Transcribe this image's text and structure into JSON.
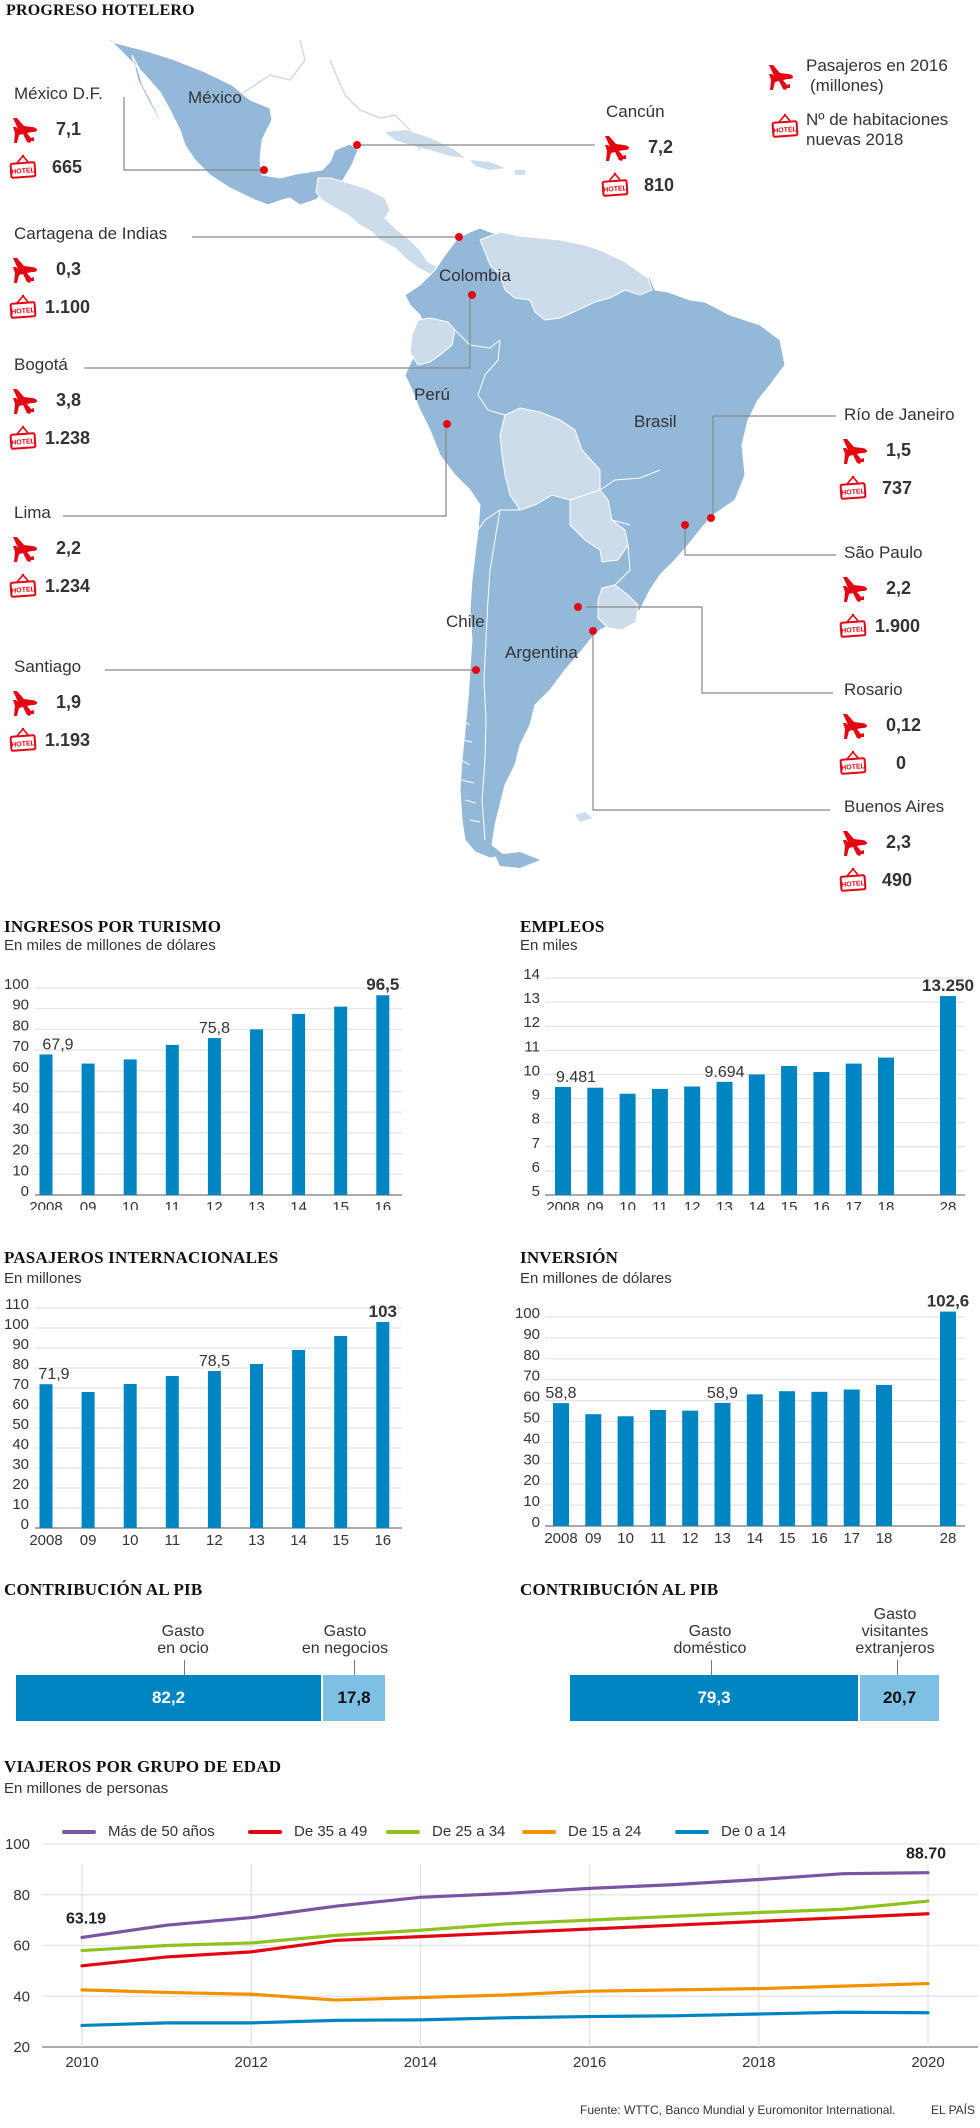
{
  "map": {
    "title": "PROGRESO HOTELERO",
    "legend": {
      "passengers_label": "Pasajeros en 2016 (millones)",
      "passengers_line1": "Pasajeros en 2016",
      "passengers_line2": "(millones)",
      "rooms_line1": "Nº de habitaciones",
      "rooms_line2": "nuevas 2018",
      "icons": {
        "passengers": "airplane-icon",
        "rooms": "hotel-sign-icon"
      }
    },
    "countries": [
      "México",
      "Colombia",
      "Perú",
      "Brasil",
      "Chile",
      "Argentina"
    ],
    "cities": [
      {
        "name": "México D.F.",
        "passengers": "7,1",
        "rooms": "665"
      },
      {
        "name": "Cancún",
        "passengers": "7,2",
        "rooms": "810"
      },
      {
        "name": "Cartagena de Indias",
        "passengers": "0,3",
        "rooms": "1.100"
      },
      {
        "name": "Bogotá",
        "passengers": "3,8",
        "rooms": "1.238"
      },
      {
        "name": "Lima",
        "passengers": "2,2",
        "rooms": "1.234"
      },
      {
        "name": "Santiago",
        "passengers": "1,9",
        "rooms": "1.193"
      },
      {
        "name": "Río de Janeiro",
        "passengers": "1,5",
        "rooms": "737"
      },
      {
        "name": "São Paulo",
        "passengers": "2,2",
        "rooms": "1.900"
      },
      {
        "name": "Rosario",
        "passengers": "0,12",
        "rooms": "0"
      },
      {
        "name": "Buenos Aires",
        "passengers": "2,3",
        "rooms": "490"
      }
    ],
    "colors": {
      "highlight": "#93b8d8",
      "other": "#cddcea",
      "marker": "#e30613"
    }
  },
  "chart_data": [
    {
      "id": "ingresos",
      "type": "bar",
      "title": "INGRESOS POR TURISMO",
      "subtitle": "En miles de millones de dólares",
      "categories": [
        "2008",
        "09",
        "10",
        "11",
        "12",
        "13",
        "14",
        "15",
        "16"
      ],
      "values": [
        67.9,
        63.5,
        65.5,
        72.5,
        75.8,
        80,
        87.5,
        91,
        96.5
      ],
      "labels": {
        "0": "67,9",
        "4": "75,8",
        "8": "96,5"
      },
      "bold_label_index": 8,
      "yticks": [
        0,
        10,
        20,
        30,
        40,
        50,
        60,
        70,
        80,
        90,
        100
      ],
      "ylim": [
        0,
        100
      ],
      "grid": true,
      "color": "#0085c3"
    },
    {
      "id": "empleos",
      "type": "bar",
      "title": "EMPLEOS",
      "subtitle": "En miles",
      "categories": [
        "2008",
        "09",
        "10",
        "11",
        "12",
        "13",
        "14",
        "15",
        "16",
        "17",
        "18",
        "28"
      ],
      "values": [
        9.481,
        9.45,
        9.2,
        9.4,
        9.5,
        9.694,
        10,
        10.35,
        10.1,
        10.45,
        10.7,
        13.25
      ],
      "labels": {
        "0": "9.481",
        "5": "9.694",
        "11": "13.250"
      },
      "bold_label_index": 11,
      "gap_before_last": true,
      "yticks": [
        5,
        6,
        7,
        8,
        9,
        10,
        11,
        12,
        13,
        14
      ],
      "ylim": [
        5,
        14
      ],
      "grid": true,
      "color": "#0085c3"
    },
    {
      "id": "pasajeros",
      "type": "bar",
      "title": "PASAJEROS INTERNACIONALES",
      "subtitle": "En millones",
      "categories": [
        "2008",
        "09",
        "10",
        "11",
        "12",
        "13",
        "14",
        "15",
        "16"
      ],
      "values": [
        71.9,
        68,
        72,
        76,
        78.5,
        82,
        89,
        96,
        103
      ],
      "labels": {
        "0": "71,9",
        "4": "78,5",
        "8": "103"
      },
      "bold_label_index": 8,
      "yticks": [
        0,
        10,
        20,
        30,
        40,
        50,
        60,
        70,
        80,
        90,
        100,
        110
      ],
      "ylim": [
        0,
        110
      ],
      "grid": true,
      "color": "#0085c3"
    },
    {
      "id": "inversion",
      "type": "bar",
      "title": "INVERSIÓN",
      "subtitle": "En millones de dólares",
      "categories": [
        "2008",
        "09",
        "10",
        "11",
        "12",
        "13",
        "14",
        "15",
        "16",
        "17",
        "18",
        "28"
      ],
      "values": [
        58.8,
        53.5,
        52.5,
        55.5,
        55.2,
        58.9,
        63,
        64.5,
        64.2,
        65.3,
        67.5,
        102.6
      ],
      "labels": {
        "0": "58,8",
        "5": "58,9",
        "11": "102,6"
      },
      "bold_label_index": 11,
      "gap_before_last": true,
      "yticks": [
        0,
        10,
        20,
        30,
        40,
        50,
        60,
        70,
        80,
        90,
        100
      ],
      "ylim": [
        0,
        100
      ],
      "grid": true,
      "color": "#0085c3"
    },
    {
      "id": "pib1",
      "type": "bar",
      "orientation": "stacked-horizontal",
      "title": "CONTRIBUCIÓN AL PIB",
      "segments": [
        {
          "label_line1": "Gasto",
          "label_line2": "en ocio",
          "value": 82.2,
          "display": "82,2",
          "color": "#0085c3"
        },
        {
          "label_line1": "Gasto",
          "label_line2": "en negocios",
          "value": 17.8,
          "display": "17,8",
          "color": "#7dc0e3"
        }
      ]
    },
    {
      "id": "pib2",
      "type": "bar",
      "orientation": "stacked-horizontal",
      "title": "CONTRIBUCIÓN AL PIB",
      "segments": [
        {
          "label_line1": "Gasto",
          "label_line2": "doméstico",
          "label_line3": "",
          "value": 79.3,
          "display": "79,3",
          "color": "#0085c3"
        },
        {
          "label_line1": "Gasto",
          "label_line2": "visitantes",
          "label_line3": "extranjeros",
          "value": 20.7,
          "display": "20,7",
          "color": "#7dc0e3"
        }
      ]
    },
    {
      "id": "viajeros",
      "type": "line",
      "title": "VIAJEROS POR GRUPO DE EDAD",
      "subtitle": "En millones de personas",
      "x": [
        2010,
        2011,
        2012,
        2013,
        2014,
        2015,
        2016,
        2017,
        2018,
        2019,
        2020
      ],
      "xticks": [
        "2010",
        "2012",
        "2014",
        "2016",
        "2018",
        "2020"
      ],
      "xtick_values": [
        2010,
        2012,
        2014,
        2016,
        2018,
        2020
      ],
      "yticks": [
        "20",
        "40",
        "60",
        "80",
        "100"
      ],
      "ytick_values": [
        20,
        40,
        60,
        80,
        100
      ],
      "ylim": [
        20,
        100
      ],
      "legend_position": "top",
      "annotations": [
        {
          "series": 0,
          "x": 2010,
          "text": "63.19"
        },
        {
          "series": 0,
          "x": 2020,
          "text": "88.70"
        }
      ],
      "series": [
        {
          "name": "Más de 50 años",
          "color": "#7b54a3",
          "values": [
            63.19,
            68,
            71,
            75.5,
            79,
            80.5,
            82.5,
            84,
            86,
            88.3,
            88.7
          ]
        },
        {
          "name": "De 35 a 49",
          "color": "#e30613",
          "values": [
            52,
            55.5,
            57.5,
            62,
            63.5,
            65,
            66.5,
            68,
            69.5,
            71,
            72.5
          ]
        },
        {
          "name": "De 25 a 34",
          "color": "#8dc21f",
          "values": [
            58,
            60,
            61,
            64,
            66,
            68.5,
            70,
            71.5,
            73,
            74.3,
            77.5
          ]
        },
        {
          "name": "De 15 a 24",
          "color": "#f39200",
          "values": [
            42.5,
            41.5,
            40.8,
            38.5,
            39.5,
            40.5,
            42,
            42.5,
            43,
            44,
            45
          ]
        },
        {
          "name": "De 0 a 14",
          "color": "#0085c3",
          "values": [
            28.5,
            29.5,
            29.5,
            30.5,
            30.7,
            31.5,
            32,
            32.3,
            33,
            33.7,
            33.5
          ]
        }
      ]
    }
  ],
  "footer": {
    "source": "Fuente: WTTC, Banco Mundial y Euromonitor International.",
    "brand": "EL PAÍS"
  }
}
